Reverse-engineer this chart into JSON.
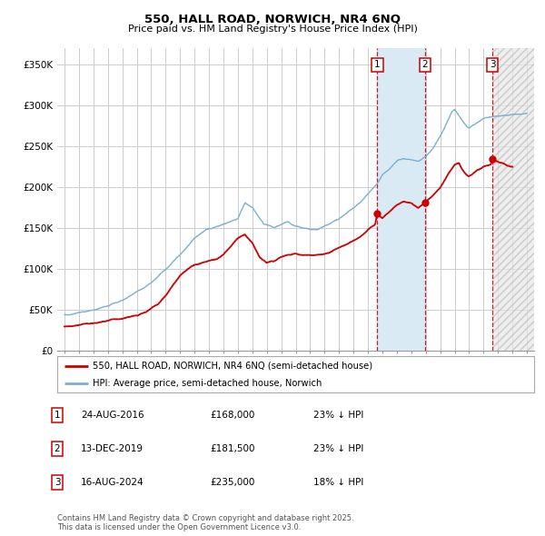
{
  "title1": "550, HALL ROAD, NORWICH, NR4 6NQ",
  "title2": "Price paid vs. HM Land Registry's House Price Index (HPI)",
  "ylabel_ticks": [
    "£0",
    "£50K",
    "£100K",
    "£150K",
    "£200K",
    "£250K",
    "£300K",
    "£350K"
  ],
  "ytick_vals": [
    0,
    50000,
    100000,
    150000,
    200000,
    250000,
    300000,
    350000
  ],
  "ylim": [
    0,
    370000
  ],
  "xlim_start": 1994.5,
  "xlim_end": 2027.5,
  "sale1_date": 2016.645,
  "sale2_date": 2019.953,
  "sale3_date": 2024.624,
  "sale1_price": 168000,
  "sale2_price": 181500,
  "sale3_price": 235000,
  "hpi_line_color": "#7ab0d4",
  "price_line_color": "#cc0000",
  "marker_color": "#cc0000",
  "vline_color": "#cc0000",
  "shade_color": "#daeaf5",
  "grid_color": "#cccccc",
  "bg_color": "#ffffff",
  "legend_label_red": "550, HALL ROAD, NORWICH, NR4 6NQ (semi-detached house)",
  "legend_label_blue": "HPI: Average price, semi-detached house, Norwich",
  "table_rows": [
    {
      "num": "1",
      "date": "24-AUG-2016",
      "price": "£168,000",
      "hpi": "23% ↓ HPI"
    },
    {
      "num": "2",
      "date": "13-DEC-2019",
      "price": "£181,500",
      "hpi": "23% ↓ HPI"
    },
    {
      "num": "3",
      "date": "16-AUG-2024",
      "price": "£235,000",
      "hpi": "18% ↓ HPI"
    }
  ],
  "footnote": "Contains HM Land Registry data © Crown copyright and database right 2025.\nThis data is licensed under the Open Government Licence v3.0."
}
